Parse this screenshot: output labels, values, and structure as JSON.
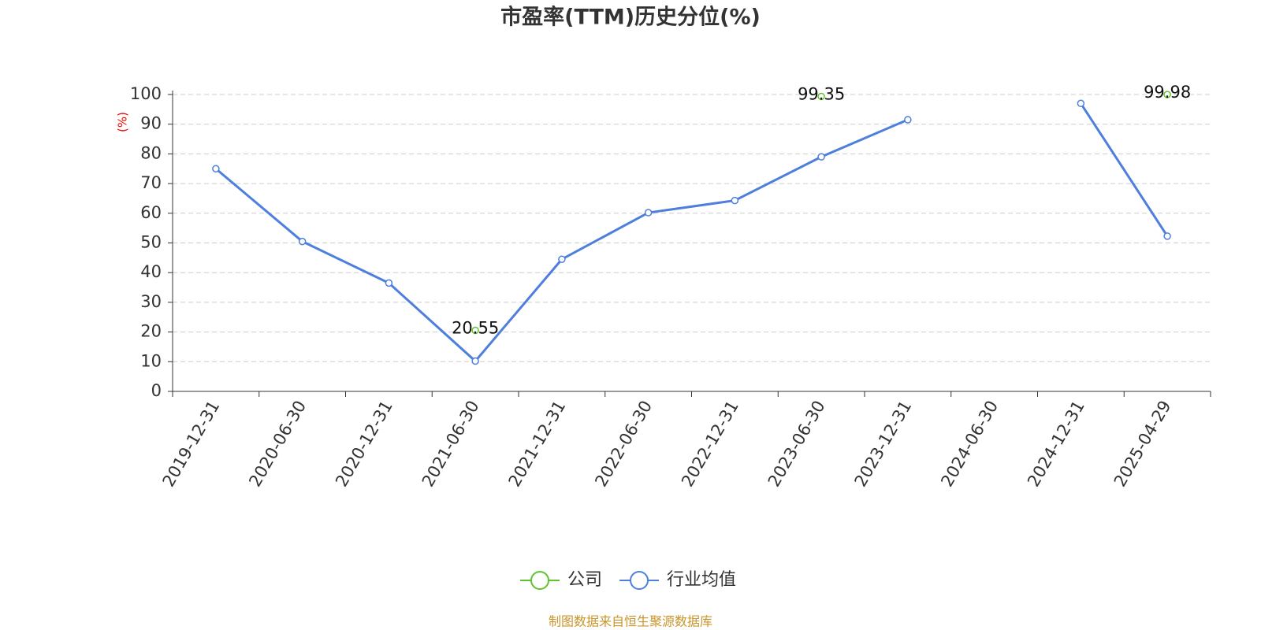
{
  "chart_data": {
    "type": "line",
    "title": "市盈率(TTM)历史分位(%)",
    "y_label": "(%)",
    "footer": "制图数据来自恒生聚源数据库",
    "categories": [
      "2019-12-31",
      "2020-06-30",
      "2020-12-31",
      "2021-06-30",
      "2021-12-31",
      "2022-06-30",
      "2022-12-31",
      "2023-06-30",
      "2023-12-31",
      "2024-06-30",
      "2024-12-31",
      "2025-04-29"
    ],
    "series": [
      {
        "name": "公司",
        "color": "#5fc22f",
        "data_labels": true,
        "values": [
          null,
          null,
          null,
          20.55,
          null,
          null,
          null,
          99.35,
          null,
          null,
          null,
          99.98
        ]
      },
      {
        "name": "行业均值",
        "color": "#4e7fdc",
        "data_labels": false,
        "values": [
          75,
          50.5,
          36.5,
          10.2,
          44.5,
          60.2,
          64.3,
          79,
          91.5,
          null,
          97,
          52.3
        ]
      }
    ],
    "ylim": [
      0,
      100
    ],
    "yticks": [
      0,
      10,
      20,
      30,
      40,
      50,
      60,
      70,
      80,
      90,
      100
    ],
    "grid": true
  }
}
